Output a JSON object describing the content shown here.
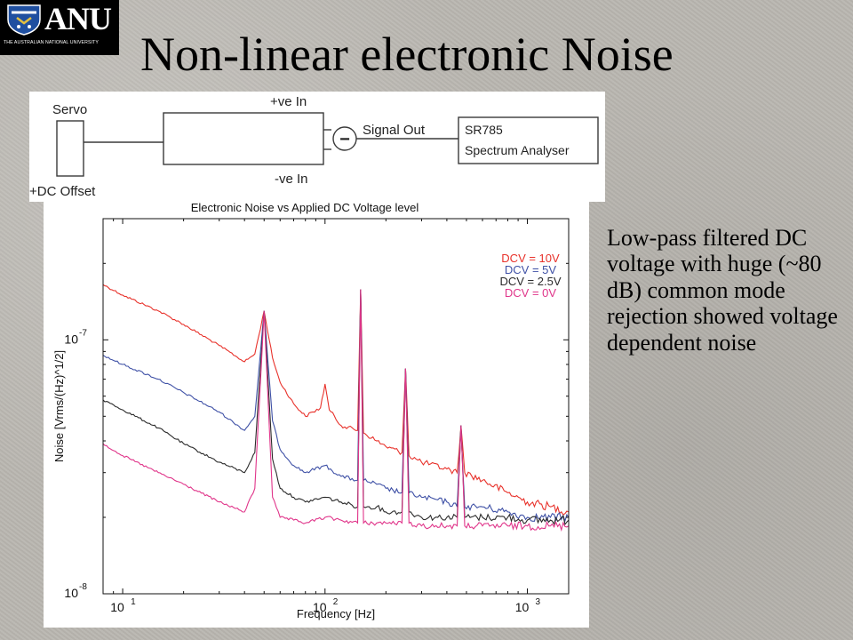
{
  "logo": {
    "text": "ANU",
    "subtitle": "THE AUSTRALIAN NATIONAL UNIVERSITY"
  },
  "slide": {
    "title": "Non-linear electronic Noise"
  },
  "schematic": {
    "servo": "Servo",
    "dc_offset": "+DC Offset",
    "plus_in": "+ve In",
    "minus_in": "-ve In",
    "signal_out": "Signal Out",
    "minus_symbol": "−",
    "analyser_line1": "SR785",
    "analyser_line2": "Spectrum Analyser"
  },
  "side_text": "Low-pass filtered DC voltage with huge (~80 dB) common mode rejection showed voltage dependent noise",
  "chart_data": {
    "type": "line",
    "title": "Electronic Noise vs Applied DC Voltage level",
    "xlabel": "Frequency [Hz]",
    "ylabel": "Noise [Vrms/(Hz)^1/2]",
    "x_scale": "log",
    "y_scale": "log",
    "xlim": [
      8,
      1600
    ],
    "ylim": [
      1e-08,
      3e-07
    ],
    "x_ticks": [
      {
        "value": 10,
        "base": "10",
        "exp": "1"
      },
      {
        "value": 100,
        "base": "10",
        "exp": "2"
      },
      {
        "value": 1000,
        "base": "10",
        "exp": "3"
      }
    ],
    "y_ticks": [
      {
        "value": 1e-08,
        "base": "10",
        "exp": "-8"
      },
      {
        "value": 1e-07,
        "base": "10",
        "exp": "-7"
      }
    ],
    "grid": false,
    "legend_position": "top-right",
    "series": [
      {
        "name": "DCV = 10V",
        "color": "#e8322b",
        "x": [
          8,
          10,
          15,
          20,
          30,
          40,
          45,
          50,
          55,
          60,
          70,
          80,
          95,
          100,
          105,
          120,
          145,
          150,
          155,
          180,
          200,
          240,
          250,
          260,
          300,
          400,
          450,
          470,
          490,
          600,
          800,
          1000,
          1300,
          1600
        ],
        "y": [
          1.65e-07,
          1.5e-07,
          1.3e-07,
          1.15e-07,
          9.5e-08,
          8.2e-08,
          8.8e-08,
          1.3e-07,
          8.5e-08,
          6.8e-08,
          5.6e-08,
          5e-08,
          5.4e-08,
          6.7e-08,
          5.3e-08,
          4.6e-08,
          4.4e-08,
          1.58e-07,
          4.3e-08,
          4e-08,
          3.8e-08,
          3.6e-08,
          7.7e-08,
          3.5e-08,
          3.3e-08,
          3.1e-08,
          3e-08,
          4.6e-08,
          3e-08,
          2.8e-08,
          2.5e-08,
          2.3e-08,
          2.2e-08,
          2.1e-08
        ]
      },
      {
        "name": "DCV = 5V",
        "color": "#3f51a6",
        "x": [
          8,
          10,
          15,
          20,
          30,
          40,
          45,
          50,
          55,
          60,
          70,
          80,
          100,
          120,
          145,
          150,
          155,
          180,
          200,
          240,
          250,
          260,
          300,
          400,
          450,
          470,
          490,
          600,
          800,
          1000,
          1300,
          1600
        ],
        "y": [
          8.7e-08,
          8e-08,
          7e-08,
          6.2e-08,
          5.2e-08,
          4.4e-08,
          5e-08,
          1.3e-07,
          4.8e-08,
          3.7e-08,
          3.2e-08,
          3e-08,
          3.2e-08,
          2.9e-08,
          2.8e-08,
          1.58e-07,
          2.8e-08,
          2.7e-08,
          2.6e-08,
          2.5e-08,
          7.7e-08,
          2.5e-08,
          2.4e-08,
          2.3e-08,
          2.2e-08,
          4.6e-08,
          2.2e-08,
          2.2e-08,
          2.1e-08,
          2e-08,
          2e-08,
          2e-08
        ]
      },
      {
        "name": "DCV = 2.5V",
        "color": "#2b2b2b",
        "x": [
          8,
          10,
          15,
          20,
          30,
          40,
          45,
          50,
          55,
          60,
          70,
          80,
          100,
          120,
          145,
          150,
          155,
          180,
          200,
          240,
          250,
          260,
          300,
          400,
          450,
          470,
          490,
          600,
          800,
          1000,
          1300,
          1600
        ],
        "y": [
          5.8e-08,
          5.3e-08,
          4.5e-08,
          3.9e-08,
          3.3e-08,
          3e-08,
          3.6e-08,
          1.3e-07,
          3.4e-08,
          2.6e-08,
          2.4e-08,
          2.3e-08,
          2.4e-08,
          2.3e-08,
          2.2e-08,
          1.58e-07,
          2.2e-08,
          2.2e-08,
          2.1e-08,
          2.1e-08,
          7.7e-08,
          2.1e-08,
          2e-08,
          2e-08,
          2e-08,
          4.6e-08,
          2e-08,
          2e-08,
          2e-08,
          1.95e-08,
          1.95e-08,
          1.95e-08
        ]
      },
      {
        "name": "DCV = 0V",
        "color": "#e0358a",
        "x": [
          8,
          10,
          15,
          20,
          30,
          40,
          45,
          50,
          55,
          60,
          70,
          80,
          100,
          120,
          145,
          150,
          155,
          180,
          200,
          240,
          250,
          260,
          300,
          400,
          450,
          470,
          490,
          600,
          800,
          1000,
          1300,
          1600
        ],
        "y": [
          3.9e-08,
          3.5e-08,
          3e-08,
          2.7e-08,
          2.3e-08,
          2.1e-08,
          2.6e-08,
          1.3e-07,
          2.4e-08,
          2e-08,
          1.95e-08,
          1.9e-08,
          2e-08,
          1.95e-08,
          1.9e-08,
          1.58e-07,
          1.9e-08,
          1.9e-08,
          1.9e-08,
          1.9e-08,
          7.7e-08,
          1.9e-08,
          1.85e-08,
          1.85e-08,
          1.85e-08,
          4.6e-08,
          1.85e-08,
          1.85e-08,
          1.85e-08,
          1.85e-08,
          1.85e-08,
          1.85e-08
        ]
      }
    ]
  }
}
